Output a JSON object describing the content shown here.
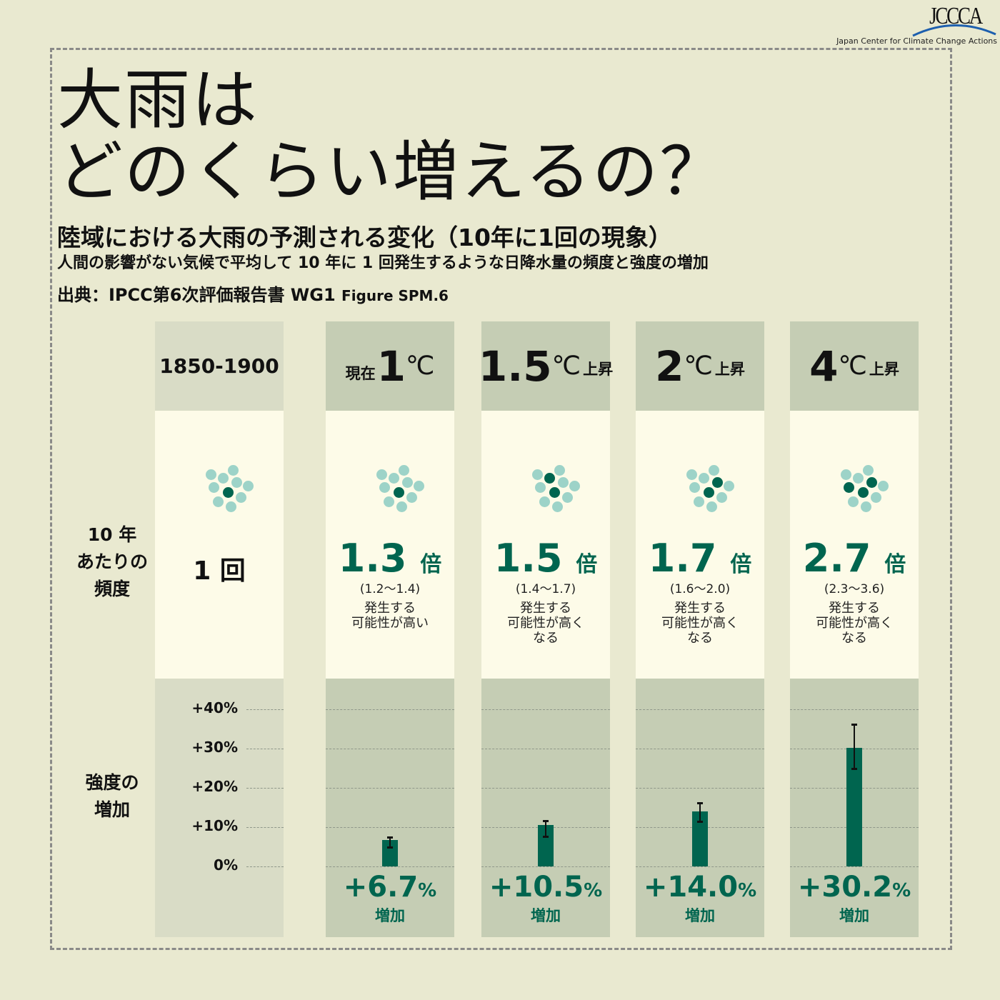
{
  "logo": {
    "text": "JCCCA",
    "subtitle": "Japan Center for Climate Change Actions"
  },
  "title": {
    "line1": "大雨は",
    "line2": "どのくらい増えるの？"
  },
  "subtitle": "陸域における大雨の予測される変化（10年に1回の現象）",
  "description": "人間の影響がない気候で平均して 10 年に 1 回発生するような日降水量の頻度と強度の増加",
  "source": {
    "main": "出典：IPCC第6次評価報告書 WG1",
    "figure": "Figure SPM.6"
  },
  "row_labels": {
    "frequency": [
      "10 年",
      "あたりの",
      "頻度"
    ],
    "intensity": [
      "強度の",
      "増加"
    ]
  },
  "colors": {
    "background": "#e9e9d0",
    "header": "#c5cdb4",
    "cell": "#fdfbe8",
    "accent": "#00654f",
    "dot_light": "#9dd3c8"
  },
  "chart_data": {
    "type": "bar",
    "categories": [
      "1850-1900",
      "現在1℃",
      "1.5℃上昇",
      "2℃上昇",
      "4℃上昇"
    ],
    "ylim": [
      0,
      40
    ],
    "yticks": [
      "+40%",
      "+30%",
      "+20%",
      "+10%",
      "0%"
    ],
    "ytick_values": [
      40,
      30,
      20,
      10,
      0
    ],
    "grid": true,
    "intensity_increase_pct": [
      0,
      6.7,
      10.5,
      14.0,
      30.2
    ],
    "intensity_range_pct": [
      null,
      [
        5.0,
        7.5
      ],
      [
        7.6,
        11.6
      ],
      [
        11.5,
        16.2
      ],
      [
        24.9,
        36.2
      ]
    ],
    "frequency_multiplier": [
      1,
      1.3,
      1.5,
      1.7,
      2.7
    ],
    "frequency_range": [
      null,
      "(1.2〜1.4)",
      "(1.4〜1.7)",
      "(1.6〜2.0)",
      "(2.3〜3.6)"
    ],
    "dots_total": 10,
    "dots_highlighted": [
      1,
      1,
      2,
      2,
      3
    ]
  },
  "columns": [
    {
      "header": {
        "pre": "",
        "big": "1850-1900",
        "deg": "",
        "suffix": ""
      },
      "once": "1 回"
    },
    {
      "header": {
        "pre": "現在",
        "big": "1",
        "deg": "℃",
        "suffix": ""
      },
      "mult": "1.3",
      "mult_unit": "倍",
      "range": "(1.2〜1.4)",
      "note": [
        "発生する",
        "可能性が高い"
      ],
      "pct": "+6.7",
      "pct_unit": "%",
      "inc": "増加"
    },
    {
      "header": {
        "pre": "",
        "big": "1.5",
        "deg": "℃",
        "suffix": "上昇"
      },
      "mult": "1.5",
      "mult_unit": "倍",
      "range": "(1.4〜1.7)",
      "note": [
        "発生する",
        "可能性が高く",
        "なる"
      ],
      "pct": "+10.5",
      "pct_unit": "%",
      "inc": "増加"
    },
    {
      "header": {
        "pre": "",
        "big": "2",
        "deg": "℃",
        "suffix": "上昇"
      },
      "mult": "1.7",
      "mult_unit": "倍",
      "range": "(1.6〜2.0)",
      "note": [
        "発生する",
        "可能性が高く",
        "なる"
      ],
      "pct": "+14.0",
      "pct_unit": "%",
      "inc": "増加"
    },
    {
      "header": {
        "pre": "",
        "big": "4",
        "deg": "℃",
        "suffix": "上昇"
      },
      "mult": "2.7",
      "mult_unit": "倍",
      "range": "(2.3〜3.6)",
      "note": [
        "発生する",
        "可能性が高く",
        "なる"
      ],
      "pct": "+30.2",
      "pct_unit": "%",
      "inc": "増加"
    }
  ]
}
